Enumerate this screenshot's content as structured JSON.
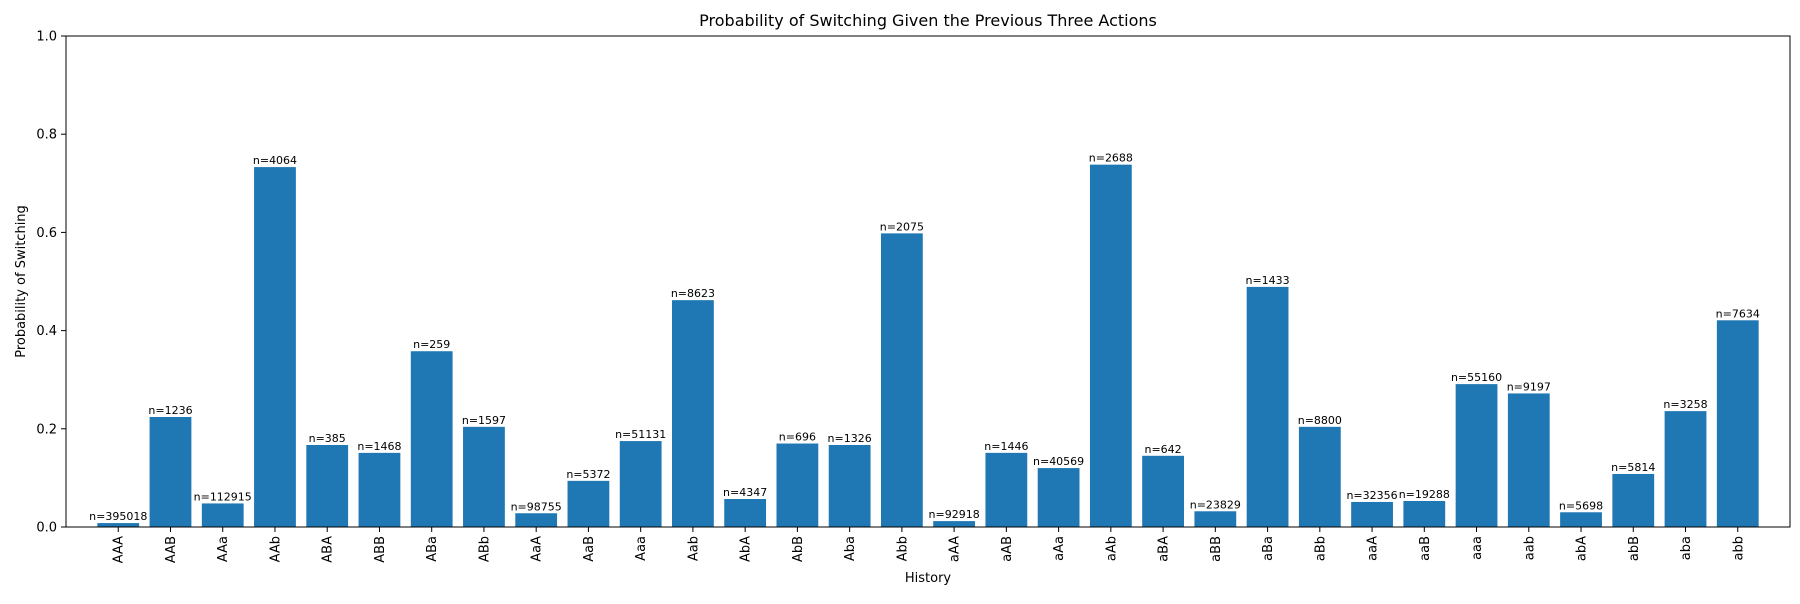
{
  "chart_data": {
    "type": "bar",
    "title": "Probability of Switching Given the Previous Three Actions",
    "xlabel": "History",
    "ylabel": "Probability of Switching",
    "ylim": [
      0,
      1.0
    ],
    "yticks": [
      "0.0",
      "0.2",
      "0.4",
      "0.6",
      "0.8",
      "1.0"
    ],
    "grid": false,
    "color": "#1f77b4",
    "categories": [
      "AAA",
      "AAB",
      "AAa",
      "AAb",
      "ABA",
      "ABB",
      "ABa",
      "ABb",
      "AaA",
      "AaB",
      "Aaa",
      "Aab",
      "AbA",
      "AbB",
      "Aba",
      "Abb",
      "aAA",
      "aAB",
      "aAa",
      "aAb",
      "aBA",
      "aBB",
      "aBa",
      "aBb",
      "aaA",
      "aaB",
      "aaa",
      "aab",
      "abA",
      "abB",
      "aba",
      "abb"
    ],
    "values": [
      0.008,
      0.224,
      0.048,
      0.733,
      0.167,
      0.151,
      0.358,
      0.204,
      0.028,
      0.094,
      0.175,
      0.462,
      0.057,
      0.17,
      0.167,
      0.598,
      0.012,
      0.151,
      0.12,
      0.738,
      0.145,
      0.032,
      0.489,
      0.204,
      0.051,
      0.053,
      0.291,
      0.272,
      0.03,
      0.108,
      0.236,
      0.421
    ],
    "bar_labels": [
      "n=395018",
      "n=1236",
      "n=112915",
      "n=4064",
      "n=385",
      "n=1468",
      "n=259",
      "n=1597",
      "n=98755",
      "n=5372",
      "n=51131",
      "n=8623",
      "n=4347",
      "n=696",
      "n=1326",
      "n=2075",
      "n=92918",
      "n=1446",
      "n=40569",
      "n=2688",
      "n=642",
      "n=23829",
      "n=1433",
      "n=8800",
      "n=32356",
      "n=19288",
      "n=55160",
      "n=9197",
      "n=5698",
      "n=5814",
      "n=3258",
      "n=7634"
    ]
  }
}
